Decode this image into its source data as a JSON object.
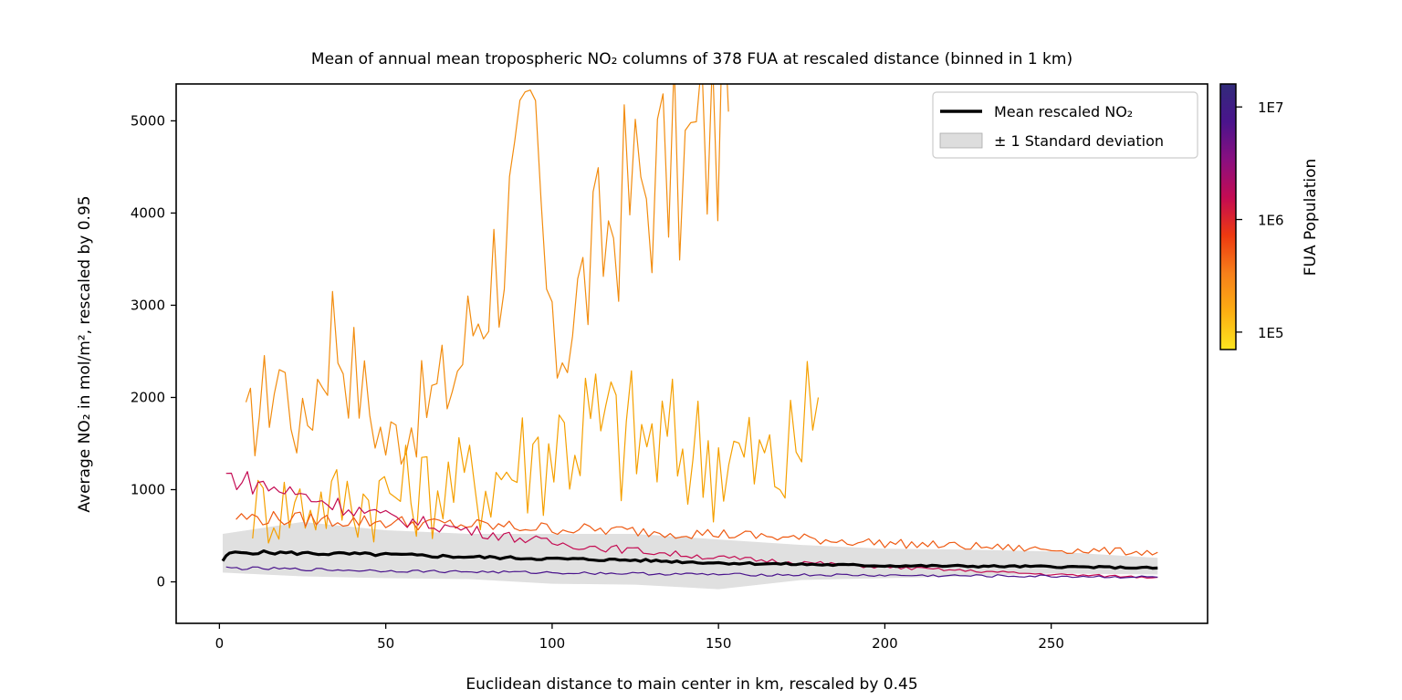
{
  "chart_data": [
    {
      "type": "line",
      "title": "Mean of annual mean tropospheric NO₂ columns of 378 FUA at rescaled distance (binned in 1 km)",
      "xlabel": "Euclidean distance to main center in km, rescaled by 0.45",
      "ylabel": "Average NO₂ in mol/m², rescaled by 0.95",
      "xlim": [
        -13,
        297
      ],
      "ylim": [
        -450,
        5400
      ],
      "xticks": [
        0,
        50,
        100,
        150,
        200,
        250
      ],
      "yticks": [
        0,
        1000,
        2000,
        3000,
        4000,
        5000
      ],
      "grid": false,
      "legend": {
        "position": "top-right",
        "items": [
          "Mean rescaled NO₂",
          "± 1 Standard deviation"
        ]
      },
      "series": [
        {
          "name": "Mean rescaled NO₂",
          "color": "#000000",
          "x": [
            1,
            3,
            10,
            25,
            50,
            75,
            100,
            125,
            150,
            175,
            200,
            225,
            250,
            282
          ],
          "values": [
            230,
            310,
            320,
            310,
            295,
            270,
            250,
            235,
            205,
            190,
            175,
            170,
            165,
            150
          ]
        },
        {
          "name": "± 1 Standard deviation",
          "color": "#bbbbbb",
          "x": [
            1,
            25,
            50,
            75,
            100,
            125,
            150,
            175,
            200,
            225,
            250,
            282
          ],
          "lower": [
            100,
            60,
            40,
            30,
            -20,
            -30,
            -80,
            20,
            40,
            60,
            90,
            80
          ],
          "upper": [
            520,
            650,
            560,
            520,
            520,
            520,
            460,
            400,
            360,
            350,
            330,
            260
          ]
        },
        {
          "color": "#f28c0f",
          "x": [
            8,
            12,
            18,
            25,
            34,
            50,
            70,
            95,
            100,
            120,
            130,
            140,
            145,
            153
          ],
          "values": [
            1600,
            1900,
            2300,
            1600,
            2800,
            1500,
            2200,
            4700,
            2400,
            4100,
            4400,
            4500,
            4800,
            5100
          ]
        },
        {
          "color": "#f5a000",
          "x": [
            10,
            40,
            80,
            110,
            130,
            150,
            170,
            180
          ],
          "values": [
            800,
            900,
            1100,
            1700,
            1500,
            1400,
            1200,
            2000
          ]
        },
        {
          "color": "#ee5a12",
          "x": [
            5,
            50,
            100,
            150,
            200,
            250,
            282
          ],
          "values": [
            700,
            650,
            580,
            520,
            420,
            350,
            320
          ]
        },
        {
          "color": "#c40b52",
          "x": [
            2,
            50,
            100,
            150,
            200,
            250,
            282
          ],
          "values": [
            1150,
            700,
            420,
            260,
            160,
            80,
            50
          ]
        },
        {
          "color": "#4a148c",
          "x": [
            2,
            50,
            100,
            150,
            200,
            250,
            282
          ],
          "values": [
            150,
            120,
            100,
            80,
            70,
            60,
            50
          ]
        }
      ]
    },
    {
      "type": "heatmap",
      "colorbar": {
        "label": "FUA Population",
        "scale": "log",
        "range": [
          70000,
          16000000
        ],
        "ticks": [
          100000,
          1000000,
          10000000
        ],
        "tick_labels": [
          "1E5",
          "1E6",
          "1E7"
        ],
        "colors": [
          "#fce51f",
          "#fcae12",
          "#f7801a",
          "#ee3a10",
          "#c40b52",
          "#8a0f80",
          "#4a148c",
          "#312b7a"
        ]
      }
    }
  ]
}
